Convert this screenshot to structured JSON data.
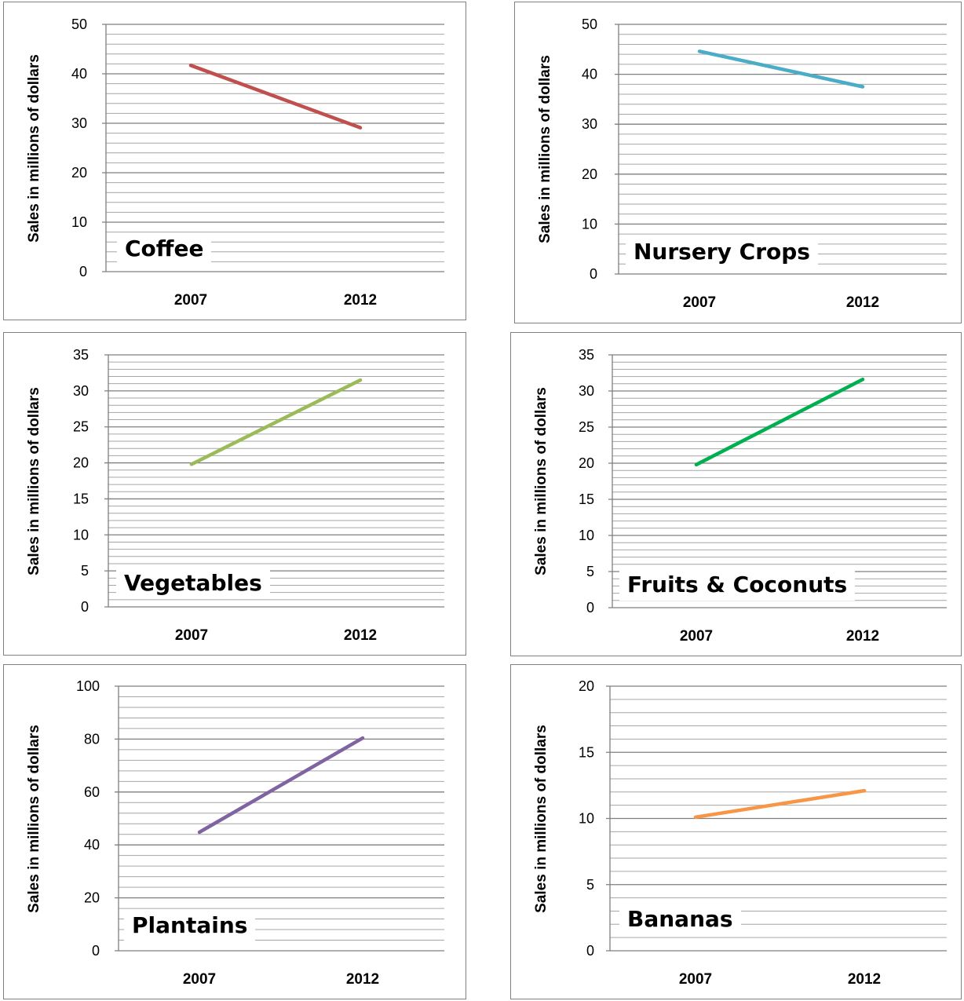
{
  "chart_data": [
    {
      "type": "line",
      "title": "Coffee",
      "ylabel": "Sales in millions of dollars",
      "categories": [
        "2007",
        "2012"
      ],
      "values": [
        41.7,
        29.1
      ],
      "ylim": [
        0,
        50
      ],
      "yticks": [
        0,
        10,
        20,
        30,
        40,
        50
      ],
      "minor_step": 2,
      "color": "#c0504d"
    },
    {
      "type": "line",
      "title": "Nursery Crops",
      "ylabel": "Sales in millions of dollars",
      "categories": [
        "2007",
        "2012"
      ],
      "values": [
        44.6,
        37.5
      ],
      "ylim": [
        0,
        50
      ],
      "yticks": [
        0,
        10,
        20,
        30,
        40,
        50
      ],
      "minor_step": 2,
      "color": "#4bacc6"
    },
    {
      "type": "line",
      "title": "Vegetables",
      "ylabel": "Sales in millions of dollars",
      "categories": [
        "2007",
        "2012"
      ],
      "values": [
        19.8,
        31.5
      ],
      "ylim": [
        0,
        35
      ],
      "yticks": [
        0,
        5,
        10,
        15,
        20,
        25,
        30,
        35
      ],
      "minor_step": 1,
      "color": "#9bbb59"
    },
    {
      "type": "line",
      "title": "Fruits & Coconuts",
      "ylabel": "Sales in millions of dollars",
      "categories": [
        "2007",
        "2012"
      ],
      "values": [
        19.8,
        31.6
      ],
      "ylim": [
        0,
        35
      ],
      "yticks": [
        0,
        5,
        10,
        15,
        20,
        25,
        30,
        35
      ],
      "minor_step": 1,
      "color": "#00b050"
    },
    {
      "type": "line",
      "title": "Plantains",
      "ylabel": "Sales in millions of dollars",
      "categories": [
        "2007",
        "2012"
      ],
      "values": [
        44.8,
        80.4
      ],
      "ylim": [
        0,
        100
      ],
      "yticks": [
        0,
        20,
        40,
        60,
        80,
        100
      ],
      "minor_step": 4,
      "color": "#8064a2"
    },
    {
      "type": "line",
      "title": "Bananas",
      "ylabel": "Sales in millions of dollars",
      "categories": [
        "2007",
        "2012"
      ],
      "values": [
        10.1,
        12.1
      ],
      "ylim": [
        0,
        20
      ],
      "yticks": [
        0,
        5,
        10,
        15,
        20
      ],
      "minor_step": 1,
      "color": "#f79646"
    }
  ]
}
